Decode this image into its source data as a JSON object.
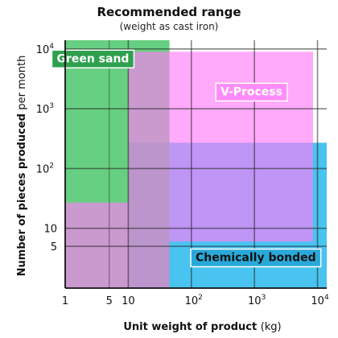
{
  "chart_data": {
    "type": "area",
    "title": "Recommended range",
    "subtitle": "(weight as cast iron)",
    "xlabel": {
      "main": "Unit weight of product",
      "unit": "(kg)"
    },
    "ylabel": {
      "main": "Number of pieces produced",
      "unit": "per month"
    },
    "x_scale": "log",
    "y_scale": "log",
    "xlim": [
      1,
      14000
    ],
    "ylim": [
      1,
      14000
    ],
    "x_ticks": [
      {
        "value": 1,
        "label": "1"
      },
      {
        "value": 5,
        "label": "5"
      },
      {
        "value": 10,
        "label": "10"
      },
      {
        "value": 100,
        "label": "10",
        "exp": "2"
      },
      {
        "value": 1000,
        "label": "10",
        "exp": "3"
      },
      {
        "value": 10000,
        "label": "10",
        "exp": "4"
      }
    ],
    "y_ticks": [
      {
        "value": 5,
        "label": "5"
      },
      {
        "value": 10,
        "label": "10"
      },
      {
        "value": 100,
        "label": "10",
        "exp": "2"
      },
      {
        "value": 1000,
        "label": "10",
        "exp": "3"
      },
      {
        "value": 10000,
        "label": "10",
        "exp": "4"
      }
    ],
    "grid": true,
    "series": [
      {
        "name": "Chemically bonded",
        "color": "#3fc0ee",
        "opacity": 0.95,
        "regions": [
          {
            "x": [
              10,
              14000
            ],
            "y": [
              1,
              270
            ]
          }
        ]
      },
      {
        "name": "Green sand",
        "color": "#3cc25e",
        "opacity": 0.78,
        "regions": [
          {
            "x": [
              1,
              45
            ],
            "y": [
              1,
              14000
            ]
          }
        ]
      },
      {
        "name": "V-Process",
        "color": "#ff7cf8",
        "opacity": 0.65,
        "regions": [
          {
            "x": [
              10,
              8500
            ],
            "y": [
              6,
              9000
            ]
          },
          {
            "x": [
              1,
              10
            ],
            "y": [
              1,
              27
            ]
          },
          {
            "x": [
              10,
              45
            ],
            "y": [
              1,
              6
            ]
          }
        ]
      }
    ]
  }
}
